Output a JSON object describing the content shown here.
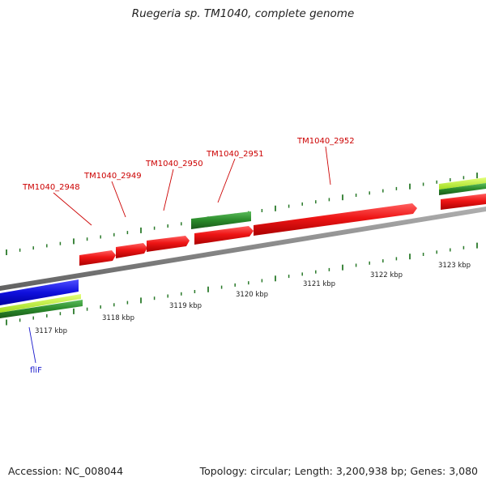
{
  "header": {
    "title": "Ruegeria sp. TM1040, complete genome"
  },
  "footer": {
    "accession": "Accession: NC_008044",
    "stats": "Topology: circular; Length: 3,200,938 bp; Genes: 3,080"
  },
  "scale": {
    "ticks": [
      {
        "kbp": 3117,
        "label": "3117 kbp"
      },
      {
        "kbp": 3118,
        "label": "3118 kbp"
      },
      {
        "kbp": 3119,
        "label": "3119 kbp"
      },
      {
        "kbp": 3120,
        "label": "3120 kbp"
      },
      {
        "kbp": 3121,
        "label": "3121 kbp"
      },
      {
        "kbp": 3122,
        "label": "3122 kbp"
      },
      {
        "kbp": 3123,
        "label": "3123 kbp"
      }
    ]
  },
  "genes": [
    {
      "name": "TM1040_2948",
      "labeled": true
    },
    {
      "name": "TM1040_2949",
      "labeled": true
    },
    {
      "name": "TM1040_2950",
      "labeled": true
    },
    {
      "name": "TM1040_2951",
      "labeled": true
    },
    {
      "name": "TM1040_2952",
      "labeled": true
    },
    {
      "name": "fliF",
      "labeled": true
    }
  ],
  "colors": {
    "forward_gene": "#e81010",
    "green_feature": "#2a8a2a",
    "blue_feature": "#1010dd",
    "lime_feature": "#b4ef2a",
    "backbone": "#8a8a8a",
    "tick_green": "#2a7a2a",
    "label_red": "#cc0000",
    "label_blue": "#1a1acc"
  }
}
